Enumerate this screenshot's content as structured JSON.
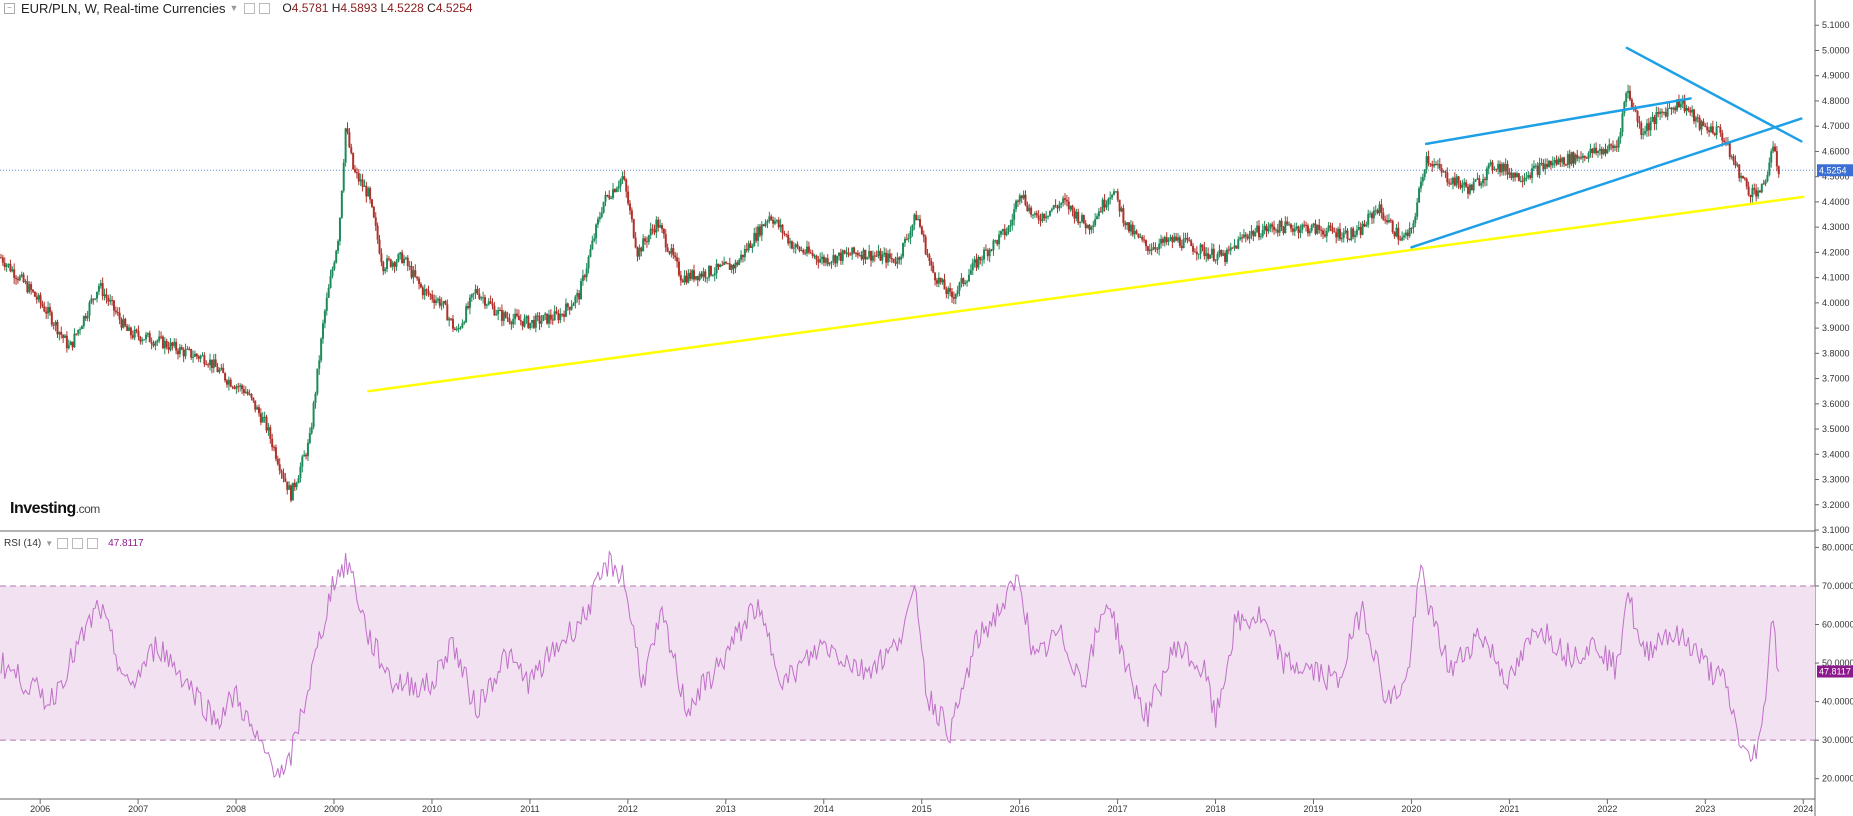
{
  "header": {
    "symbol_title": "EUR/PLN, W, Real-time Currencies",
    "open": "4.5781",
    "high": "4.5893",
    "low": "4.5228",
    "close": "4.5254"
  },
  "rsi_header": {
    "label": "RSI (14)",
    "value": "47.8117"
  },
  "logo": {
    "text": "Investing",
    "suffix": ".com"
  },
  "colors": {
    "bull": "#1e8a5a",
    "bear": "#b0302a",
    "trend_yellow": "#ffff00",
    "trend_blue": "#1ea0e6",
    "rsi_line": "#c070c8",
    "rsi_band": "#f1e1f1",
    "price_badge": "#3b6fd3",
    "rsi_badge": "#8c1a8c"
  },
  "chart_data": [
    {
      "type": "candlestick",
      "series_name": "EUR/PLN",
      "ylim": [
        3.1,
        5.2
      ],
      "y_ticks": [
        "3.1000",
        "3.2000",
        "3.3000",
        "3.4000",
        "3.5000",
        "3.6000",
        "3.7000",
        "3.8000",
        "3.9000",
        "4.0000",
        "4.1000",
        "4.2000",
        "4.3000",
        "4.4000",
        "4.5000",
        "4.6000",
        "4.7000",
        "4.8000",
        "4.9000",
        "5.0000",
        "5.1000"
      ],
      "x_ticks": [
        "2006",
        "2007",
        "2008",
        "2009",
        "2010",
        "2011",
        "2012",
        "2013",
        "2014",
        "2015",
        "2016",
        "2017",
        "2018",
        "2019",
        "2020",
        "2021",
        "2022",
        "2023",
        "2024"
      ],
      "last_price_label": "4.5254",
      "last_price": 4.5254,
      "anchors": [
        [
          2005.6,
          4.18
        ],
        [
          2005.9,
          4.05
        ],
        [
          2006.1,
          3.95
        ],
        [
          2006.3,
          3.82
        ],
        [
          2006.6,
          4.07
        ],
        [
          2006.9,
          3.88
        ],
        [
          2007.2,
          3.85
        ],
        [
          2007.5,
          3.8
        ],
        [
          2007.7,
          3.78
        ],
        [
          2007.9,
          3.7
        ],
        [
          2008.1,
          3.65
        ],
        [
          2008.3,
          3.52
        ],
        [
          2008.5,
          3.3
        ],
        [
          2008.56,
          3.24
        ],
        [
          2008.75,
          3.45
        ],
        [
          2008.9,
          3.95
        ],
        [
          2009.05,
          4.28
        ],
        [
          2009.12,
          4.7
        ],
        [
          2009.2,
          4.52
        ],
        [
          2009.35,
          4.43
        ],
        [
          2009.5,
          4.15
        ],
        [
          2009.7,
          4.18
        ],
        [
          2009.9,
          4.05
        ],
        [
          2010.1,
          4.0
        ],
        [
          2010.25,
          3.88
        ],
        [
          2010.45,
          4.05
        ],
        [
          2010.7,
          3.95
        ],
        [
          2011.0,
          3.92
        ],
        [
          2011.3,
          3.95
        ],
        [
          2011.5,
          4.03
        ],
        [
          2011.75,
          4.4
        ],
        [
          2011.95,
          4.5
        ],
        [
          2012.1,
          4.2
        ],
        [
          2012.3,
          4.32
        ],
        [
          2012.55,
          4.1
        ],
        [
          2012.8,
          4.12
        ],
        [
          2013.1,
          4.15
        ],
        [
          2013.45,
          4.35
        ],
        [
          2013.7,
          4.22
        ],
        [
          2014.0,
          4.17
        ],
        [
          2014.35,
          4.2
        ],
        [
          2014.75,
          4.17
        ],
        [
          2014.95,
          4.35
        ],
        [
          2015.1,
          4.13
        ],
        [
          2015.3,
          4.02
        ],
        [
          2015.6,
          4.18
        ],
        [
          2015.9,
          4.3
        ],
        [
          2016.0,
          4.45
        ],
        [
          2016.15,
          4.33
        ],
        [
          2016.45,
          4.4
        ],
        [
          2016.7,
          4.3
        ],
        [
          2016.95,
          4.45
        ],
        [
          2017.1,
          4.3
        ],
        [
          2017.3,
          4.22
        ],
        [
          2017.6,
          4.25
        ],
        [
          2017.9,
          4.2
        ],
        [
          2018.1,
          4.18
        ],
        [
          2018.3,
          4.27
        ],
        [
          2018.6,
          4.3
        ],
        [
          2018.9,
          4.3
        ],
        [
          2019.2,
          4.28
        ],
        [
          2019.45,
          4.27
        ],
        [
          2019.65,
          4.38
        ],
        [
          2019.9,
          4.25
        ],
        [
          2020.0,
          4.28
        ],
        [
          2020.15,
          4.58
        ],
        [
          2020.35,
          4.5
        ],
        [
          2020.6,
          4.45
        ],
        [
          2020.85,
          4.55
        ],
        [
          2021.1,
          4.5
        ],
        [
          2021.4,
          4.55
        ],
        [
          2021.6,
          4.57
        ],
        [
          2021.9,
          4.6
        ],
        [
          2022.1,
          4.62
        ],
        [
          2022.2,
          4.85
        ],
        [
          2022.35,
          4.68
        ],
        [
          2022.55,
          4.75
        ],
        [
          2022.75,
          4.8
        ],
        [
          2022.95,
          4.7
        ],
        [
          2023.15,
          4.68
        ],
        [
          2023.3,
          4.55
        ],
        [
          2023.45,
          4.44
        ],
        [
          2023.6,
          4.45
        ],
        [
          2023.68,
          4.62
        ],
        [
          2023.75,
          4.525
        ]
      ],
      "trendlines": [
        {
          "color": "yellow",
          "from": [
            2009.35,
            3.65
          ],
          "to": [
            2024.0,
            4.42
          ]
        },
        {
          "color": "blue",
          "from": [
            2020.0,
            4.22
          ],
          "to": [
            2023.98,
            4.73
          ]
        },
        {
          "color": "blue",
          "from": [
            2020.15,
            4.63
          ],
          "to": [
            2022.85,
            4.81
          ]
        },
        {
          "color": "blue",
          "from": [
            2022.2,
            5.01
          ],
          "to": [
            2023.98,
            4.64
          ]
        }
      ]
    },
    {
      "type": "line",
      "series_name": "RSI (14)",
      "ylim": [
        15,
        84
      ],
      "y_ticks": [
        "20.0000",
        "30.0000",
        "40.0000",
        "50.0000",
        "60.0000",
        "70.0000",
        "80.0000"
      ],
      "bands": [
        30,
        70
      ],
      "last_value_label": "47.8117",
      "last_value": 47.8117,
      "anchors": [
        [
          2005.6,
          50
        ],
        [
          2006.1,
          40
        ],
        [
          2006.6,
          65
        ],
        [
          2006.9,
          43
        ],
        [
          2007.2,
          55
        ],
        [
          2007.5,
          45
        ],
        [
          2007.8,
          35
        ],
        [
          2008.0,
          42
        ],
        [
          2008.2,
          30
        ],
        [
          2008.5,
          20
        ],
        [
          2008.75,
          45
        ],
        [
          2009.0,
          72
        ],
        [
          2009.15,
          76
        ],
        [
          2009.35,
          57
        ],
        [
          2009.6,
          45
        ],
        [
          2010.0,
          44
        ],
        [
          2010.2,
          56
        ],
        [
          2010.45,
          38
        ],
        [
          2010.75,
          52
        ],
        [
          2011.0,
          45
        ],
        [
          2011.3,
          55
        ],
        [
          2011.55,
          62
        ],
        [
          2011.8,
          76
        ],
        [
          2011.95,
          73
        ],
        [
          2012.15,
          45
        ],
        [
          2012.35,
          62
        ],
        [
          2012.6,
          38
        ],
        [
          2012.95,
          50
        ],
        [
          2013.3,
          65
        ],
        [
          2013.6,
          45
        ],
        [
          2014.0,
          55
        ],
        [
          2014.4,
          48
        ],
        [
          2014.7,
          53
        ],
        [
          2014.95,
          68
        ],
        [
          2015.05,
          42
        ],
        [
          2015.3,
          32
        ],
        [
          2015.55,
          55
        ],
        [
          2015.85,
          66
        ],
        [
          2016.0,
          72
        ],
        [
          2016.15,
          50
        ],
        [
          2016.4,
          58
        ],
        [
          2016.65,
          45
        ],
        [
          2016.9,
          67
        ],
        [
          2017.1,
          48
        ],
        [
          2017.3,
          36
        ],
        [
          2017.6,
          55
        ],
        [
          2017.9,
          47
        ],
        [
          2018.0,
          35
        ],
        [
          2018.2,
          60
        ],
        [
          2018.45,
          62
        ],
        [
          2018.7,
          50
        ],
        [
          2019.0,
          48
        ],
        [
          2019.25,
          45
        ],
        [
          2019.5,
          65
        ],
        [
          2019.75,
          40
        ],
        [
          2019.95,
          45
        ],
        [
          2020.1,
          75
        ],
        [
          2020.2,
          62
        ],
        [
          2020.4,
          48
        ],
        [
          2020.7,
          58
        ],
        [
          2021.0,
          45
        ],
        [
          2021.3,
          60
        ],
        [
          2021.6,
          52
        ],
        [
          2021.9,
          55
        ],
        [
          2022.1,
          48
        ],
        [
          2022.2,
          70
        ],
        [
          2022.35,
          52
        ],
        [
          2022.6,
          58
        ],
        [
          2022.85,
          55
        ],
        [
          2023.05,
          48
        ],
        [
          2023.2,
          45
        ],
        [
          2023.35,
          30
        ],
        [
          2023.45,
          24
        ],
        [
          2023.58,
          32
        ],
        [
          2023.68,
          63
        ],
        [
          2023.75,
          47.8
        ]
      ]
    }
  ]
}
